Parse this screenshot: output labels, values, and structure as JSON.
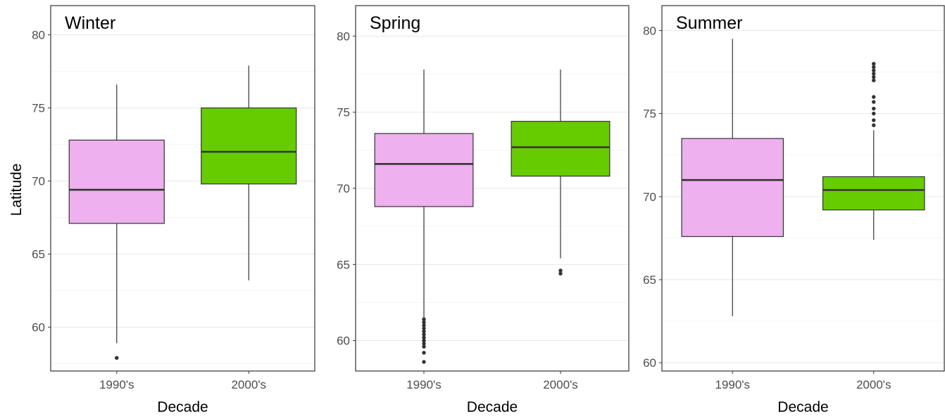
{
  "chart_data": [
    {
      "type": "boxplot",
      "title": "Winter",
      "xlabel": "Decade",
      "ylabel": "Latitude",
      "categories": [
        "1990's",
        "2000's"
      ],
      "ylim": [
        57,
        82
      ],
      "yticks": [
        60,
        65,
        70,
        75,
        80
      ],
      "boxes": [
        {
          "category": "1990's",
          "whisker_low": 58.9,
          "q1": 67.1,
          "median": 69.4,
          "q3": 72.8,
          "whisker_high": 76.6,
          "fill": "#EEB0EE",
          "outliers": [
            57.9
          ]
        },
        {
          "category": "2000's",
          "whisker_low": 63.2,
          "q1": 69.8,
          "median": 72.0,
          "q3": 75.0,
          "whisker_high": 77.9,
          "fill": "#66CC00",
          "outliers": []
        }
      ]
    },
    {
      "type": "boxplot",
      "title": "Spring",
      "xlabel": "Decade",
      "ylabel": "",
      "categories": [
        "1990's",
        "2000's"
      ],
      "ylim": [
        58,
        82
      ],
      "yticks": [
        60,
        65,
        70,
        75,
        80
      ],
      "boxes": [
        {
          "category": "1990's",
          "whisker_low": 61.5,
          "q1": 68.8,
          "median": 71.6,
          "q3": 73.6,
          "whisker_high": 77.8,
          "fill": "#EEB0EE",
          "outliers": [
            61.4,
            61.2,
            61.0,
            60.8,
            60.6,
            60.4,
            60.2,
            60.0,
            59.8,
            59.6,
            59.2,
            58.6
          ]
        },
        {
          "category": "2000's",
          "whisker_low": 65.4,
          "q1": 70.8,
          "median": 72.7,
          "q3": 74.4,
          "whisker_high": 77.8,
          "fill": "#66CC00",
          "outliers": [
            64.6,
            64.4
          ]
        }
      ]
    },
    {
      "type": "boxplot",
      "title": "Summer",
      "xlabel": "Decade",
      "ylabel": "",
      "categories": [
        "1990's",
        "2000's"
      ],
      "ylim": [
        59.5,
        81.5
      ],
      "yticks": [
        60,
        65,
        70,
        75,
        80
      ],
      "boxes": [
        {
          "category": "1990's",
          "whisker_low": 62.8,
          "q1": 67.6,
          "median": 71.0,
          "q3": 73.5,
          "whisker_high": 79.5,
          "fill": "#EEB0EE",
          "outliers": []
        },
        {
          "category": "2000's",
          "whisker_low": 67.4,
          "q1": 69.2,
          "median": 70.4,
          "q3": 71.2,
          "whisker_high": 74.0,
          "fill": "#66CC00",
          "outliers": [
            78.0,
            77.8,
            77.6,
            77.4,
            77.2,
            77.0,
            76.0,
            75.7,
            75.3,
            75.0,
            74.6,
            74.3
          ]
        }
      ]
    }
  ]
}
